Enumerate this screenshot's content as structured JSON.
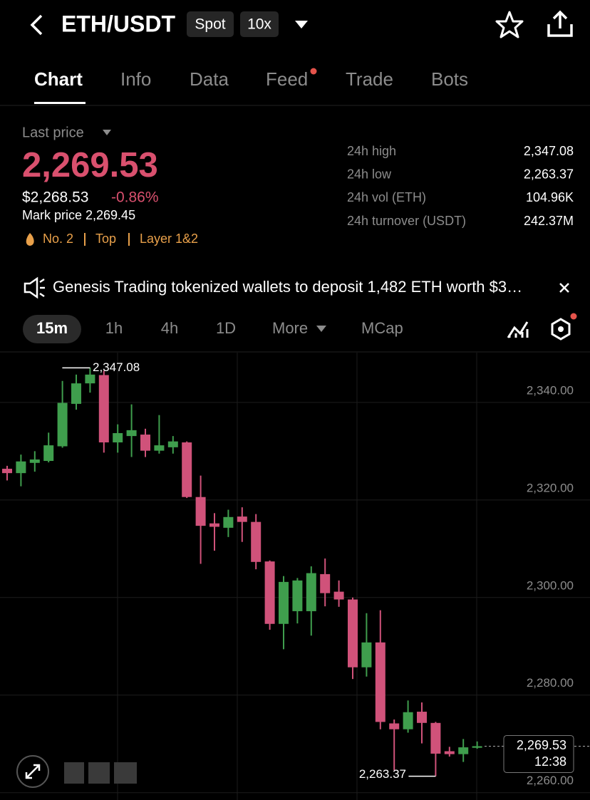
{
  "header": {
    "pair": "ETH/USDT",
    "badges": [
      "Spot",
      "10x"
    ]
  },
  "tabs": [
    "Chart",
    "Info",
    "Data",
    "Feed",
    "Trade",
    "Bots"
  ],
  "price": {
    "label": "Last price",
    "last": "2,269.53",
    "usd": "$2,268.53",
    "change": "-0.86%",
    "mark": "Mark price 2,269.45",
    "tags": [
      "No. 2",
      "Top",
      "Layer 1&2"
    ]
  },
  "stats": [
    [
      "24h high",
      "2,347.08"
    ],
    [
      "24h low",
      "2,263.37"
    ],
    [
      "24h vol (ETH)",
      "104.96K"
    ],
    [
      "24h turnover (USDT)",
      "242.37M"
    ]
  ],
  "news": "Genesis Trading tokenized wallets to deposit 1,482 ETH worth $3…",
  "timeframes": [
    "15m",
    "1h",
    "4h",
    "1D",
    "More",
    "MCap"
  ],
  "chart_data": {
    "type": "candlestick",
    "up_color": "#3f9e4d",
    "down_color": "#d0527a",
    "open": [
      2326.4,
      2325.5,
      2327.6,
      2328.0,
      2331.0,
      2339.7,
      2343.9,
      2345.6,
      2331.8,
      2333.1,
      2333.4,
      2330.1,
      2330.8,
      2331.8,
      2320.6,
      2315.2,
      2314.3,
      2316.6,
      2315.5,
      2307.4,
      2294.6,
      2297.2,
      2297.2,
      2304.8,
      2301.2,
      2299.6,
      2285.7,
      2290.8,
      2274.2,
      2273.0,
      2276.6,
      2274.3,
      2268.5,
      2267.9,
      2269.2
    ],
    "high": [
      2327.0,
      2329.3,
      2330.0,
      2333.8,
      2344.4,
      2345.7,
      2347.08,
      2346.5,
      2335.5,
      2339.6,
      2334.6,
      2337.4,
      2333.1,
      2332.0,
      2325.0,
      2317.3,
      2318.0,
      2318.5,
      2317.1,
      2307.6,
      2304.4,
      2304.0,
      2306.4,
      2308.0,
      2303.5,
      2300.0,
      2296.8,
      2297.4,
      2275.0,
      2278.9,
      2278.5,
      2274.5,
      2269.4,
      2271.0,
      2270.5
    ],
    "low": [
      2324.0,
      2322.8,
      2325.8,
      2327.7,
      2330.7,
      2338.5,
      2342.0,
      2329.7,
      2329.7,
      2328.8,
      2328.8,
      2329.5,
      2329.5,
      2320.4,
      2306.9,
      2309.6,
      2312.4,
      2311.4,
      2305.8,
      2293.4,
      2289.4,
      2294.7,
      2292.2,
      2298.2,
      2298.1,
      2283.3,
      2283.8,
      2273.0,
      2264.6,
      2272.3,
      2270.1,
      2263.37,
      2267.4,
      2266.3,
      2269.0
    ],
    "close": [
      2325.5,
      2327.9,
      2328.3,
      2331.2,
      2339.9,
      2343.9,
      2345.7,
      2331.8,
      2333.7,
      2334.3,
      2330.1,
      2331.2,
      2332.0,
      2320.6,
      2314.7,
      2314.5,
      2316.5,
      2315.5,
      2307.3,
      2294.6,
      2303.2,
      2303.5,
      2305.0,
      2300.9,
      2299.6,
      2285.7,
      2290.8,
      2274.5,
      2273.0,
      2276.5,
      2274.3,
      2268.0,
      2267.9,
      2269.3,
      2269.53
    ],
    "ylim": [
      2258.5,
      2350.2
    ],
    "yticks": [
      {
        "value": 2260,
        "label": "2,260.00"
      },
      {
        "value": 2280,
        "label": "2,280.00"
      },
      {
        "value": 2300,
        "label": "2,300.00"
      },
      {
        "value": 2320,
        "label": "2,320.00"
      },
      {
        "value": 2340,
        "label": "2,340.00"
      }
    ],
    "grid": true,
    "high_label": {
      "value": 2347.08,
      "label": "2,347.08"
    },
    "low_label": {
      "value": 2263.37,
      "label": "2,263.37"
    },
    "last_price": {
      "value": 2269.53,
      "label": "2,269.53"
    },
    "countdown": "12:38"
  }
}
